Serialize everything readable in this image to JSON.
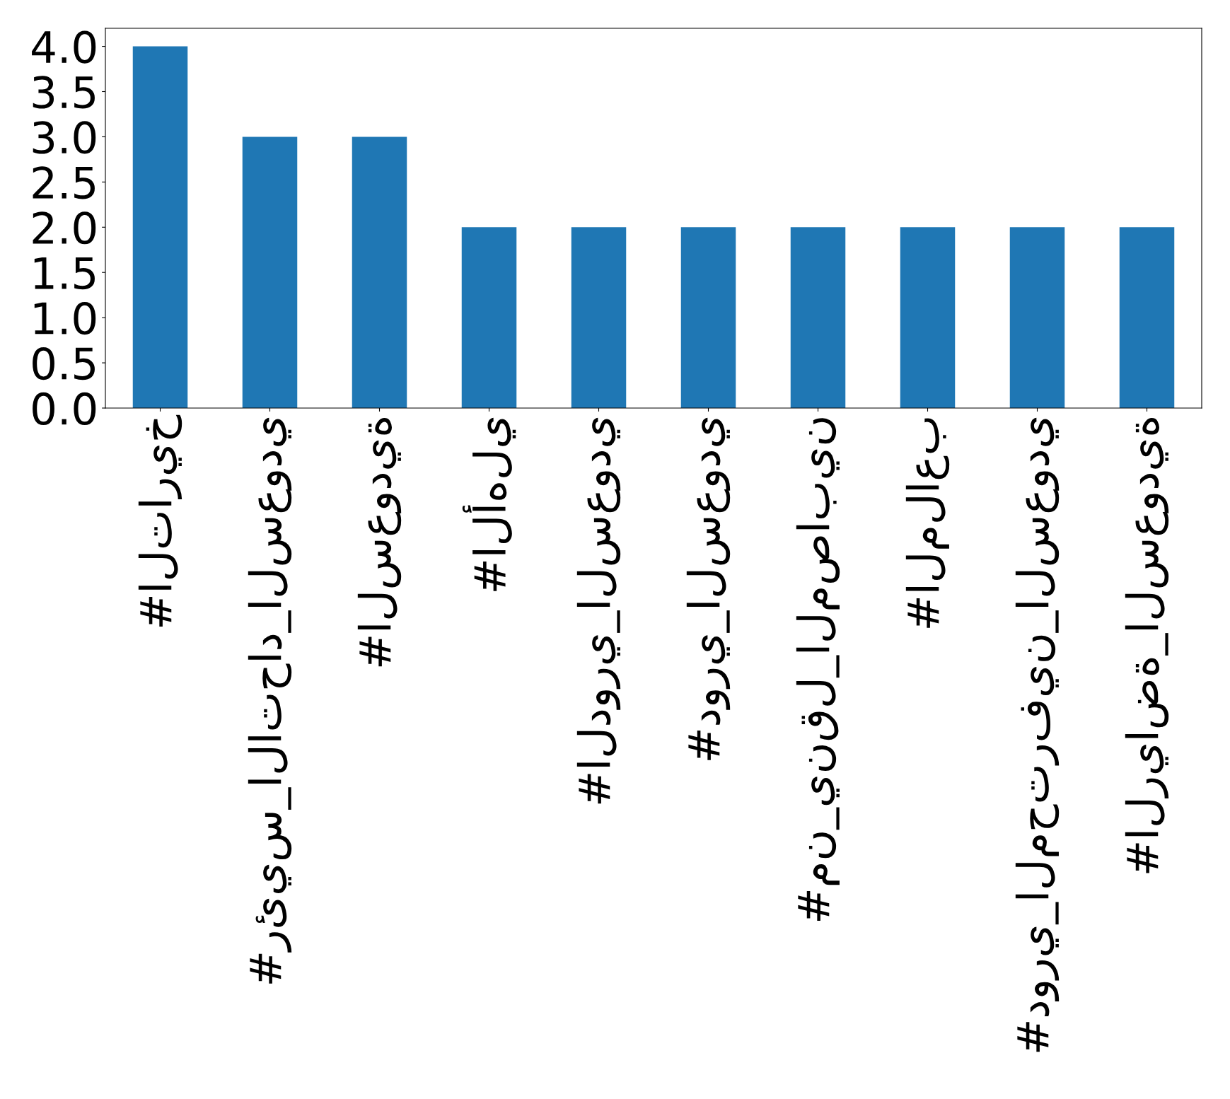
{
  "chart_data": {
    "type": "bar",
    "categories": [
      "#التاريخ",
      "#رئيس_الاتحاد_السعودي",
      "#السعودية",
      "#الأهلي",
      "#الدوري_السعودي",
      "#دوري_السعودي",
      "#من_ينقل_المصابين",
      "#الملاعب",
      "#دوري_المحترفين_السعودي",
      "#الرياضة_السعودية"
    ],
    "values": [
      4,
      3,
      3,
      2,
      2,
      2,
      2,
      2,
      2,
      2
    ],
    "color": "#1f77b4",
    "ylim": [
      0,
      4.2
    ],
    "yticks": [
      {
        "value": 0,
        "label": "0.0"
      },
      0.5,
      {
        "value": 1,
        "label": "1.0"
      },
      1.5,
      {
        "value": 2,
        "label": "2.0"
      },
      2.5,
      {
        "value": 3,
        "label": "3.0"
      },
      3.5,
      {
        "value": 4,
        "label": "4.0"
      }
    ],
    "grid": false,
    "legend": false
  }
}
